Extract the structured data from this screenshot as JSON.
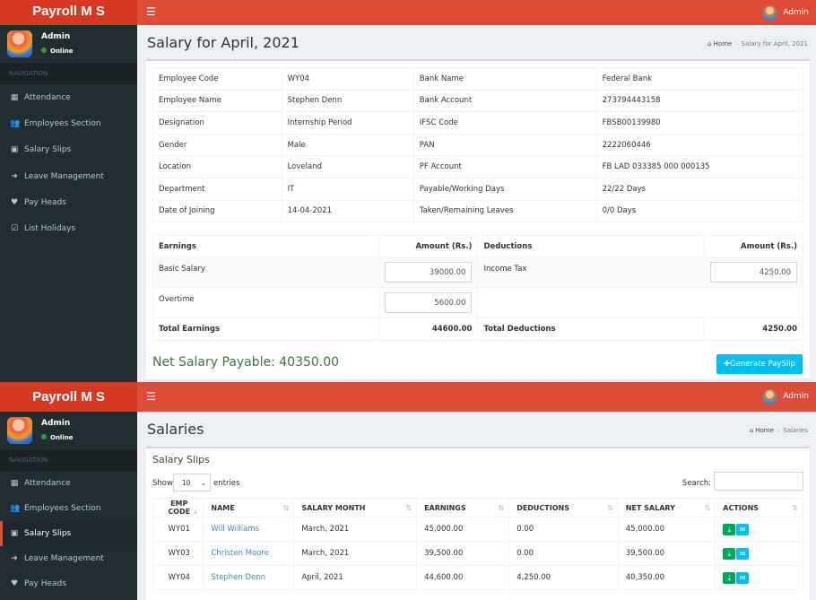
{
  "app": {
    "logo": "Payroll M S",
    "user": "Admin",
    "status": "Online",
    "nav_header": "NAVIGATION",
    "nav": [
      {
        "label": "Attendance",
        "icon": "calendar-icon"
      },
      {
        "label": "Employees Section",
        "icon": "users-icon"
      },
      {
        "label": "Salary Slips",
        "icon": "money-icon"
      },
      {
        "label": "Leave Management",
        "icon": "sign-out-icon"
      },
      {
        "label": "Pay Heads",
        "icon": "heart-icon"
      },
      {
        "label": "List Holidays",
        "icon": "calendar-check-icon"
      }
    ]
  },
  "colors": {
    "header": "#dd4b39",
    "sidebar": "#222d32",
    "accent": "#00c0ef",
    "net": "#3c763d"
  },
  "salary_page": {
    "title": "Salary for April, 2021",
    "crumb_home": "Home",
    "crumb_current": "Salary for April, 2021",
    "info": [
      [
        "Employee Code",
        "WY04",
        "Bank Name",
        "Federal Bank"
      ],
      [
        "Employee Name",
        "Stephen Denn",
        "Bank Account",
        "273794443158"
      ],
      [
        "Designation",
        "Internship Period",
        "IFSC Code",
        "FBSB00139980"
      ],
      [
        "Gender",
        "Male",
        "PAN",
        "2222060446"
      ],
      [
        "Location",
        "Loveland",
        "PF Account",
        "FB LAD 033385 000 000135"
      ],
      [
        "Department",
        "IT",
        "Payable/Working Days",
        "22/22 Days"
      ],
      [
        "Date of Joining",
        "14-04-2021",
        "Taken/Remaining Leaves",
        "0/0 Days"
      ]
    ],
    "earnings_header": "Earnings",
    "amount_header": "Amount (Rs.)",
    "deductions_header": "Deductions",
    "earnings": [
      {
        "label": "Basic Salary",
        "value": "39000.00"
      },
      {
        "label": "Overtime",
        "value": "5600.00"
      }
    ],
    "deductions": [
      {
        "label": "Income Tax",
        "value": "4250.00"
      }
    ],
    "total_earnings_label": "Total Earnings",
    "total_earnings": "44600.00",
    "total_deductions_label": "Total Deductions",
    "total_deductions": "4250.00",
    "net_salary": "Net Salary Payable: 40350.00",
    "generate_button": "Generate PaySlip"
  },
  "salaries_page": {
    "title": "Salaries",
    "crumb_home": "Home",
    "crumb_current": "Salaries",
    "box_title": "Salary Slips",
    "show_label": "Show",
    "entries_value": "10",
    "entries_label": "entries",
    "search_label": "Search:",
    "search_value": "",
    "columns": [
      "EMP CODE",
      "NAME",
      "SALARY MONTH",
      "EARNINGS",
      "DEDUCTIONS",
      "NET SALARY",
      "ACTIONS"
    ],
    "rows": [
      [
        "WY01",
        "Will Williams",
        "March, 2021",
        "45,000.00",
        "0.00",
        "45,000.00"
      ],
      [
        "WY03",
        "Christen Moore",
        "March, 2021",
        "39,500.00",
        "0.00",
        "39,500.00"
      ],
      [
        "WY04",
        "Stephen Denn",
        "April, 2021",
        "44,600.00",
        "4,250.00",
        "40,350.00"
      ]
    ]
  }
}
